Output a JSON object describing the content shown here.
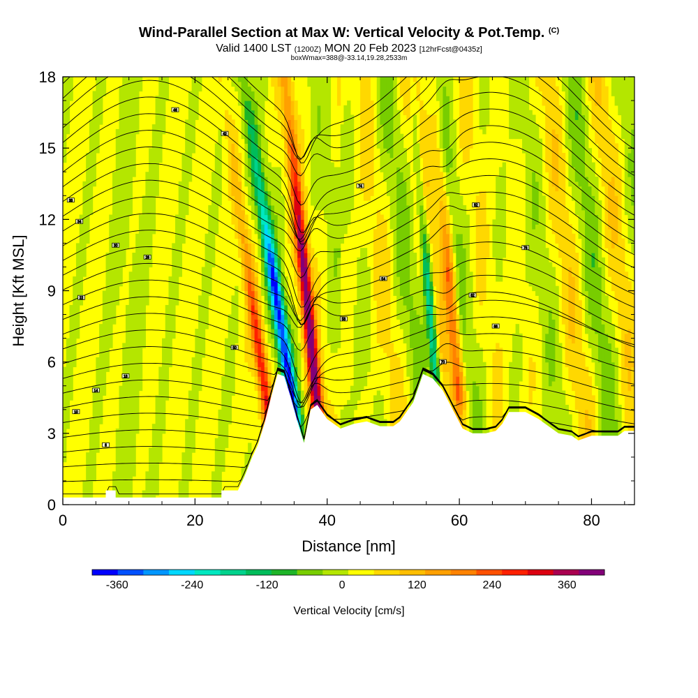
{
  "title": {
    "main": "Wind-Parallel Section at Max W: Vertical Velocity & Pot.Temp.",
    "mark": "(C)",
    "valid_a": "Valid 1400 LST",
    "valid_zulu": "(1200Z)",
    "valid_b": "MON 20 Feb 2023",
    "forecast": "[12hrFcst@0435z]",
    "box": "boxWmax=388@-33.14,19.28,2533m"
  },
  "chart_data": {
    "type": "heatmap",
    "xlabel": "Distance [nm]",
    "ylabel": "Height [Kft MSL]",
    "xlim": [
      0,
      86.5
    ],
    "ylim": [
      0,
      18
    ],
    "x_ticks": [
      "0",
      "20",
      "40",
      "60",
      "80"
    ],
    "y_ticks": [
      "0",
      "3",
      "6",
      "9",
      "12",
      "15",
      "18"
    ],
    "colorbar": {
      "label": "Vertical Velocity [cm/s]",
      "range": [
        -400,
        420
      ],
      "ticks": [
        "-360",
        "-240",
        "-120",
        "0",
        "120",
        "240",
        "360"
      ],
      "colors": [
        "#0000ff",
        "#0050ff",
        "#0096ff",
        "#00d8ff",
        "#00e8c0",
        "#00d28c",
        "#00bc5a",
        "#1eb428",
        "#78cd00",
        "#b4e600",
        "#ffff00",
        "#ffd800",
        "#ffbe00",
        "#ffa000",
        "#ff8200",
        "#ff5000",
        "#ff2000",
        "#dc0010",
        "#aa0050",
        "#820078"
      ]
    },
    "terrain_kft": [
      [
        0,
        0.3
      ],
      [
        6.5,
        0.3
      ],
      [
        6.5,
        0.6
      ],
      [
        8,
        0.6
      ],
      [
        8,
        0.3
      ],
      [
        24,
        0.3
      ],
      [
        24,
        0.6
      ],
      [
        26.5,
        0.6
      ],
      [
        27.5,
        1.2
      ],
      [
        28.5,
        1.9
      ],
      [
        29.5,
        2.5
      ],
      [
        30.5,
        3.4
      ],
      [
        31.5,
        4.5
      ],
      [
        32.5,
        5.5
      ],
      [
        33.5,
        5.4
      ],
      [
        34.5,
        4.5
      ],
      [
        35.5,
        3.5
      ],
      [
        36.5,
        2.6
      ],
      [
        37.5,
        4.0
      ],
      [
        38.5,
        4.2
      ],
      [
        40,
        3.6
      ],
      [
        42,
        3.2
      ],
      [
        44,
        3.4
      ],
      [
        46,
        3.5
      ],
      [
        48,
        3.3
      ],
      [
        50,
        3.3
      ],
      [
        51,
        3.5
      ],
      [
        53,
        4.3
      ],
      [
        54.5,
        5.5
      ],
      [
        56,
        5.3
      ],
      [
        57.5,
        4.8
      ],
      [
        59,
        4.0
      ],
      [
        60.5,
        3.2
      ],
      [
        62,
        3.0
      ],
      [
        64,
        3.0
      ],
      [
        65.5,
        3.1
      ],
      [
        66.5,
        3.4
      ],
      [
        67.5,
        3.9
      ],
      [
        70,
        3.9
      ],
      [
        72,
        3.6
      ],
      [
        73.5,
        3.3
      ],
      [
        75,
        3.0
      ],
      [
        77,
        2.9
      ],
      [
        78,
        2.7
      ],
      [
        80,
        2.9
      ],
      [
        84,
        2.9
      ],
      [
        85,
        3.1
      ],
      [
        86.5,
        3.1
      ]
    ],
    "w_features": [
      {
        "x": 35.2,
        "y0": 3.5,
        "y1": 9.5,
        "slope": 0.55,
        "w": -360,
        "sigma": 1.0
      },
      {
        "x": 38.6,
        "y0": 3.8,
        "y1": 10.5,
        "slope": 0.35,
        "w": 380,
        "sigma": 0.9
      },
      {
        "x": 56.4,
        "y0": 5.5,
        "y1": 9.5,
        "slope": 0.3,
        "w": -240,
        "sigma": 0.7
      },
      {
        "x": 60.0,
        "y0": 4.5,
        "y1": 10,
        "slope": 0.3,
        "w": 200,
        "sigma": 0.9
      },
      {
        "x": 31.5,
        "y0": 3.0,
        "y1": 7,
        "slope": 0.5,
        "w": 260,
        "sigma": 0.9
      }
    ],
    "contour_labels": [
      {
        "x": 17,
        "y": 16.6,
        "t": "46"
      },
      {
        "x": 24.5,
        "y": 15.6,
        "t": "42"
      },
      {
        "x": 1.2,
        "y": 12.8,
        "t": "38"
      },
      {
        "x": 2.5,
        "y": 11.9,
        "t": "34"
      },
      {
        "x": 8,
        "y": 10.9,
        "t": "30"
      },
      {
        "x": 12.8,
        "y": 10.4,
        "t": "26"
      },
      {
        "x": 2.8,
        "y": 8.7,
        "t": "22"
      },
      {
        "x": 9.5,
        "y": 5.4,
        "t": "18"
      },
      {
        "x": 5,
        "y": 4.8,
        "t": "14"
      },
      {
        "x": 2,
        "y": 3.9,
        "t": "10"
      },
      {
        "x": 6.5,
        "y": 2.5,
        "t": "6"
      },
      {
        "x": 26,
        "y": 6.6,
        "t": "50"
      },
      {
        "x": 48.5,
        "y": 9.5,
        "t": "54"
      },
      {
        "x": 42.5,
        "y": 7.8,
        "t": "58"
      },
      {
        "x": 62,
        "y": 8.8,
        "t": "62"
      },
      {
        "x": 65.5,
        "y": 7.5,
        "t": "66"
      },
      {
        "x": 57.5,
        "y": 6.0,
        "t": "70"
      },
      {
        "x": 45,
        "y": 13.4,
        "t": "74"
      },
      {
        "x": 70,
        "y": 10.8,
        "t": "78"
      },
      {
        "x": 62.5,
        "y": 12.6,
        "t": "82"
      }
    ]
  }
}
